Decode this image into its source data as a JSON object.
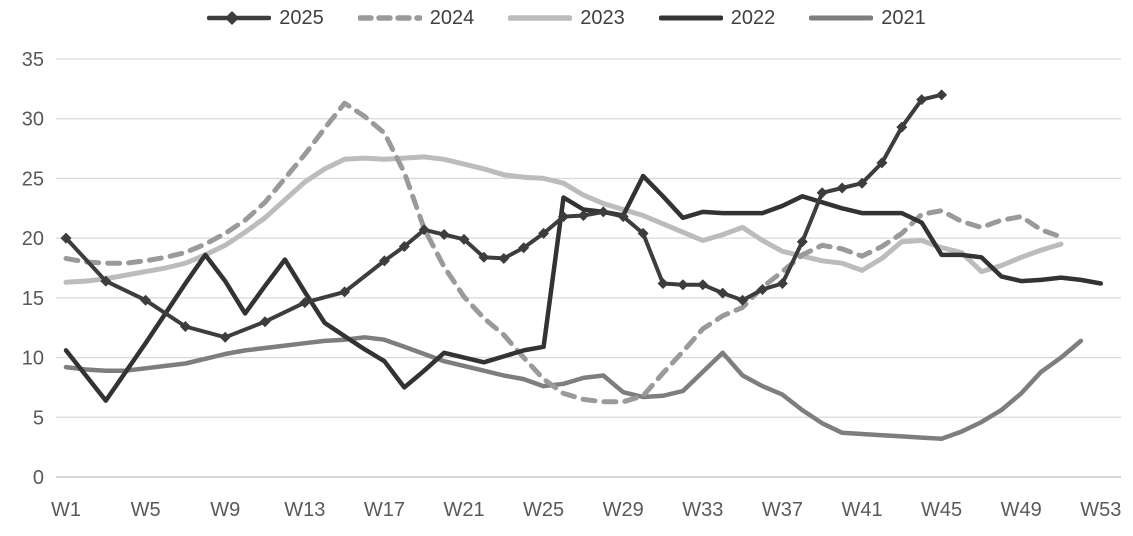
{
  "chart_data": {
    "type": "line",
    "title": "",
    "xlabel": "",
    "ylabel": "",
    "x_axis": {
      "unit": "week",
      "tick_weeks": [
        1,
        5,
        9,
        13,
        17,
        21,
        25,
        29,
        33,
        37,
        41,
        45,
        49,
        53
      ],
      "tick_labels": [
        "W1",
        "W5",
        "W9",
        "W13",
        "W17",
        "W21",
        "W25",
        "W29",
        "W33",
        "W37",
        "W41",
        "W45",
        "W49",
        "W53"
      ],
      "total_weeks": 53
    },
    "y_axis": {
      "min": 0,
      "max": 35,
      "ticks": [
        0,
        5,
        10,
        15,
        20,
        25,
        30,
        35
      ]
    },
    "grid": "horizontal",
    "legend_position": "top",
    "colors": {
      "text_axis": "#595959",
      "gridline": "#d9d9d9",
      "baseline": "#bfbfbf",
      "legend_text": "#404040"
    },
    "series": [
      {
        "name": "2025",
        "color": "#3d3d3d",
        "style": "solid",
        "marker": "diamond",
        "line_width": 4,
        "points": [
          [
            1,
            20.0
          ],
          [
            3,
            16.4
          ],
          [
            5,
            14.8
          ],
          [
            7,
            12.6
          ],
          [
            9,
            11.7
          ],
          [
            11,
            13.0
          ],
          [
            13,
            14.6
          ],
          [
            15,
            15.5
          ],
          [
            17,
            18.1
          ],
          [
            18,
            19.3
          ],
          [
            19,
            20.7
          ],
          [
            20,
            20.3
          ],
          [
            21,
            19.9
          ],
          [
            22,
            18.4
          ],
          [
            23,
            18.3
          ],
          [
            24,
            19.2
          ],
          [
            25,
            20.4
          ],
          [
            26,
            21.8
          ],
          [
            27,
            21.9
          ],
          [
            28,
            22.2
          ],
          [
            29,
            21.8
          ],
          [
            30,
            20.4
          ],
          [
            31,
            16.2
          ],
          [
            32,
            16.1
          ],
          [
            33,
            16.1
          ],
          [
            34,
            15.4
          ],
          [
            35,
            14.8
          ],
          [
            36,
            15.7
          ],
          [
            37,
            16.2
          ],
          [
            38,
            19.7
          ],
          [
            39,
            23.8
          ],
          [
            40,
            24.2
          ],
          [
            41,
            24.6
          ],
          [
            42,
            26.3
          ],
          [
            43,
            29.3
          ],
          [
            44,
            31.6
          ],
          [
            45,
            32.0
          ]
        ]
      },
      {
        "name": "2024",
        "color": "#9a9a9a",
        "style": "dashed",
        "marker": "none",
        "line_width": 5,
        "points": [
          [
            1,
            18.3
          ],
          [
            2,
            18.0
          ],
          [
            3,
            17.9
          ],
          [
            4,
            17.9
          ],
          [
            5,
            18.1
          ],
          [
            6,
            18.4
          ],
          [
            7,
            18.8
          ],
          [
            8,
            19.5
          ],
          [
            9,
            20.4
          ],
          [
            10,
            21.5
          ],
          [
            11,
            23.0
          ],
          [
            12,
            25.0
          ],
          [
            13,
            27.0
          ],
          [
            14,
            29.2
          ],
          [
            15,
            31.3
          ],
          [
            16,
            30.2
          ],
          [
            17,
            28.8
          ],
          [
            18,
            25.5
          ],
          [
            19,
            20.8
          ],
          [
            20,
            17.6
          ],
          [
            21,
            15.1
          ],
          [
            22,
            13.3
          ],
          [
            23,
            11.9
          ],
          [
            24,
            10.0
          ],
          [
            25,
            8.2
          ],
          [
            26,
            7.0
          ],
          [
            27,
            6.5
          ],
          [
            28,
            6.3
          ],
          [
            29,
            6.3
          ],
          [
            30,
            6.8
          ],
          [
            31,
            8.7
          ],
          [
            32,
            10.5
          ],
          [
            33,
            12.4
          ],
          [
            34,
            13.5
          ],
          [
            35,
            14.2
          ],
          [
            36,
            15.9
          ],
          [
            37,
            17.2
          ],
          [
            38,
            18.6
          ],
          [
            39,
            19.4
          ],
          [
            40,
            19.1
          ],
          [
            41,
            18.5
          ],
          [
            42,
            19.3
          ],
          [
            43,
            20.4
          ],
          [
            44,
            22.0
          ],
          [
            45,
            22.3
          ],
          [
            46,
            21.4
          ],
          [
            47,
            20.9
          ],
          [
            48,
            21.5
          ],
          [
            49,
            21.8
          ],
          [
            50,
            20.7
          ],
          [
            51,
            20.1
          ]
        ]
      },
      {
        "name": "2023",
        "color": "#bcbcbc",
        "style": "solid",
        "marker": "none",
        "line_width": 5,
        "points": [
          [
            1,
            16.3
          ],
          [
            2,
            16.4
          ],
          [
            3,
            16.6
          ],
          [
            4,
            16.9
          ],
          [
            5,
            17.2
          ],
          [
            6,
            17.5
          ],
          [
            7,
            17.9
          ],
          [
            8,
            18.6
          ],
          [
            9,
            19.4
          ],
          [
            10,
            20.5
          ],
          [
            11,
            21.7
          ],
          [
            12,
            23.2
          ],
          [
            13,
            24.7
          ],
          [
            14,
            25.8
          ],
          [
            15,
            26.6
          ],
          [
            16,
            26.7
          ],
          [
            17,
            26.6
          ],
          [
            18,
            26.7
          ],
          [
            19,
            26.8
          ],
          [
            20,
            26.6
          ],
          [
            21,
            26.2
          ],
          [
            22,
            25.8
          ],
          [
            23,
            25.3
          ],
          [
            24,
            25.1
          ],
          [
            25,
            25.0
          ],
          [
            26,
            24.6
          ],
          [
            27,
            23.6
          ],
          [
            28,
            22.9
          ],
          [
            29,
            22.4
          ],
          [
            30,
            21.9
          ],
          [
            31,
            21.2
          ],
          [
            32,
            20.5
          ],
          [
            33,
            19.8
          ],
          [
            34,
            20.3
          ],
          [
            35,
            20.9
          ],
          [
            36,
            19.8
          ],
          [
            37,
            18.9
          ],
          [
            38,
            18.5
          ],
          [
            39,
            18.1
          ],
          [
            40,
            17.9
          ],
          [
            41,
            17.3
          ],
          [
            42,
            18.3
          ],
          [
            43,
            19.7
          ],
          [
            44,
            19.8
          ],
          [
            45,
            19.2
          ],
          [
            46,
            18.8
          ],
          [
            47,
            17.2
          ],
          [
            48,
            17.7
          ],
          [
            49,
            18.4
          ],
          [
            50,
            19.0
          ],
          [
            51,
            19.5
          ]
        ]
      },
      {
        "name": "2022",
        "color": "#333333",
        "style": "solid",
        "marker": "none",
        "line_width": 4.5,
        "points": [
          [
            1,
            10.6
          ],
          [
            2,
            8.5
          ],
          [
            3,
            6.4
          ],
          [
            4,
            8.8
          ],
          [
            5,
            11.2
          ],
          [
            6,
            13.7
          ],
          [
            7,
            16.2
          ],
          [
            8,
            18.6
          ],
          [
            9,
            16.4
          ],
          [
            10,
            13.7
          ],
          [
            11,
            16.0
          ],
          [
            12,
            18.2
          ],
          [
            13,
            15.5
          ],
          [
            14,
            12.9
          ],
          [
            15,
            11.8
          ],
          [
            16,
            10.7
          ],
          [
            17,
            9.7
          ],
          [
            18,
            7.5
          ],
          [
            19,
            8.9
          ],
          [
            20,
            10.4
          ],
          [
            21,
            10.0
          ],
          [
            22,
            9.6
          ],
          [
            23,
            10.1
          ],
          [
            24,
            10.6
          ],
          [
            25,
            10.9
          ],
          [
            26,
            23.4
          ],
          [
            27,
            22.4
          ],
          [
            28,
            22.2
          ],
          [
            29,
            21.9
          ],
          [
            30,
            25.2
          ],
          [
            31,
            23.5
          ],
          [
            32,
            21.7
          ],
          [
            33,
            22.2
          ],
          [
            34,
            22.1
          ],
          [
            35,
            22.1
          ],
          [
            36,
            22.1
          ],
          [
            37,
            22.7
          ],
          [
            38,
            23.5
          ],
          [
            39,
            23.0
          ],
          [
            40,
            22.5
          ],
          [
            41,
            22.1
          ],
          [
            42,
            22.1
          ],
          [
            43,
            22.1
          ],
          [
            44,
            21.3
          ],
          [
            45,
            18.6
          ],
          [
            46,
            18.6
          ],
          [
            47,
            18.4
          ],
          [
            48,
            16.8
          ],
          [
            49,
            16.4
          ],
          [
            50,
            16.5
          ],
          [
            51,
            16.7
          ],
          [
            52,
            16.5
          ],
          [
            53,
            16.2
          ]
        ]
      },
      {
        "name": "2021",
        "color": "#7e7e7e",
        "style": "solid",
        "marker": "none",
        "line_width": 4.5,
        "points": [
          [
            1,
            9.2
          ],
          [
            2,
            9.0
          ],
          [
            3,
            8.9
          ],
          [
            4,
            8.9
          ],
          [
            5,
            9.1
          ],
          [
            6,
            9.3
          ],
          [
            7,
            9.5
          ],
          [
            8,
            9.9
          ],
          [
            9,
            10.3
          ],
          [
            10,
            10.6
          ],
          [
            11,
            10.8
          ],
          [
            12,
            11.0
          ],
          [
            13,
            11.2
          ],
          [
            14,
            11.4
          ],
          [
            15,
            11.5
          ],
          [
            16,
            11.7
          ],
          [
            17,
            11.5
          ],
          [
            18,
            10.9
          ],
          [
            19,
            10.3
          ],
          [
            20,
            9.7
          ],
          [
            21,
            9.3
          ],
          [
            22,
            8.9
          ],
          [
            23,
            8.5
          ],
          [
            24,
            8.2
          ],
          [
            25,
            7.6
          ],
          [
            26,
            7.8
          ],
          [
            27,
            8.3
          ],
          [
            28,
            8.5
          ],
          [
            29,
            7.1
          ],
          [
            30,
            6.7
          ],
          [
            31,
            6.8
          ],
          [
            32,
            7.2
          ],
          [
            33,
            8.8
          ],
          [
            34,
            10.4
          ],
          [
            35,
            8.5
          ],
          [
            36,
            7.6
          ],
          [
            37,
            6.9
          ],
          [
            38,
            5.6
          ],
          [
            39,
            4.5
          ],
          [
            40,
            3.7
          ],
          [
            41,
            3.6
          ],
          [
            42,
            3.5
          ],
          [
            43,
            3.4
          ],
          [
            44,
            3.3
          ],
          [
            45,
            3.2
          ],
          [
            46,
            3.8
          ],
          [
            47,
            4.6
          ],
          [
            48,
            5.6
          ],
          [
            49,
            7.0
          ],
          [
            50,
            8.8
          ],
          [
            51,
            10.0
          ],
          [
            52,
            11.4
          ]
        ]
      }
    ]
  }
}
